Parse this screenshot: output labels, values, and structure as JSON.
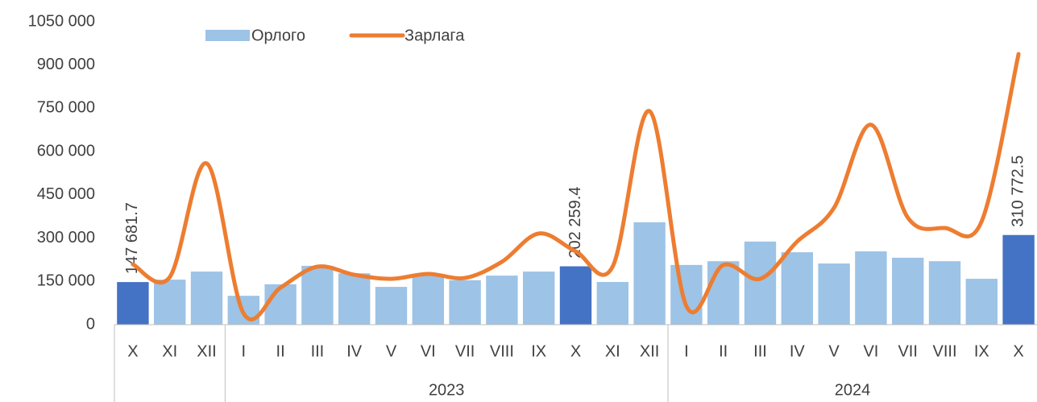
{
  "chart_data": {
    "type": "bar_line",
    "categories": [
      "X",
      "XI",
      "XII",
      "I",
      "II",
      "III",
      "IV",
      "V",
      "VI",
      "VII",
      "VIII",
      "IX",
      "X",
      "XI",
      "XII",
      "I",
      "II",
      "III",
      "IV",
      "V",
      "VI",
      "VII",
      "VIII",
      "IX",
      "X"
    ],
    "group_labels": [
      null,
      "2023",
      "2024"
    ],
    "group_sizes": [
      3,
      12,
      10
    ],
    "series": [
      {
        "name": "Орлого",
        "type": "bar",
        "color": "#9dc3e6",
        "colors": [
          "#4472c4",
          "#9dc3e6",
          "#9dc3e6",
          "#9dc3e6",
          "#9dc3e6",
          "#9dc3e6",
          "#9dc3e6",
          "#9dc3e6",
          "#9dc3e6",
          "#9dc3e6",
          "#9dc3e6",
          "#9dc3e6",
          "#4472c4",
          "#9dc3e6",
          "#9dc3e6",
          "#9dc3e6",
          "#9dc3e6",
          "#9dc3e6",
          "#9dc3e6",
          "#9dc3e6",
          "#9dc3e6",
          "#9dc3e6",
          "#9dc3e6",
          "#9dc3e6",
          "#4472c4"
        ],
        "values": [
          147681.7,
          156000,
          184000,
          100000,
          140000,
          204000,
          178000,
          131000,
          170000,
          154000,
          170000,
          184000,
          202259.4,
          148000,
          355000,
          207000,
          220000,
          288000,
          251000,
          212000,
          254000,
          232000,
          220000,
          159000,
          310772.5
        ],
        "value_labels": [
          "147 681.7",
          null,
          null,
          null,
          null,
          null,
          null,
          null,
          null,
          null,
          null,
          null,
          "202 259.4",
          null,
          null,
          null,
          null,
          null,
          null,
          null,
          null,
          null,
          null,
          null,
          "310 772.5"
        ]
      },
      {
        "name": "Зарлага",
        "type": "line",
        "color": "#ed7d31",
        "values": [
          209000,
          165000,
          559000,
          39000,
          128000,
          201000,
          173000,
          159000,
          176000,
          162000,
          218000,
          316000,
          254000,
          201000,
          740000,
          64000,
          207000,
          159000,
          288000,
          405000,
          693000,
          371000,
          335000,
          358000,
          938000
        ]
      }
    ],
    "ylim": [
      0,
      1050000
    ],
    "yticks": [
      0,
      {
        "value": 150000,
        "label": "150 000"
      },
      {
        "value": 300000,
        "label": "300 000"
      },
      {
        "value": 450000,
        "label": "450 000"
      },
      {
        "value": 600000,
        "label": "600 000"
      },
      {
        "value": 750000,
        "label": "750 000"
      },
      {
        "value": 900000,
        "label": "900 000"
      },
      {
        "value": 1050000,
        "label": "1050 000"
      }
    ],
    "legend": "top"
  }
}
